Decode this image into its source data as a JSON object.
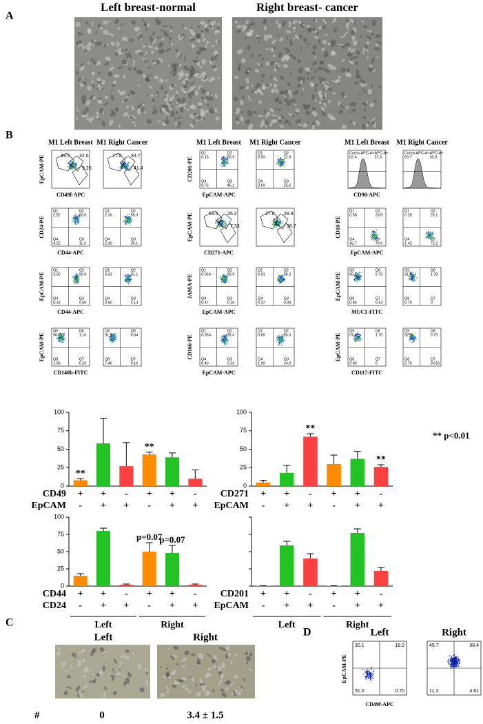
{
  "panel_a": {
    "label": "A",
    "images": [
      "Left breast-normal",
      "Right breast- cancer"
    ]
  },
  "panel_b": {
    "label": "B",
    "groups": [
      {
        "headers": [
          "M1 Left Breast",
          "M1 Right Cancer"
        ],
        "plots": [
          {
            "kind": "gate",
            "y_label": "EpCAM-PE",
            "x_label": "CD49f-APC",
            "left": [
              "49.5",
              "32.6",
              "9.20"
            ],
            "right": [
              "17.0",
              "33.7",
              "41.4"
            ]
          },
          {
            "kind": "quad",
            "y_label": "CD24-PE",
            "x_label": "CD44-APC",
            "quadrants": [
              "Q1",
              "Q2",
              "Q4",
              "Q3"
            ],
            "left": [
              "2.52",
              "83.0",
              "3.22",
              "11.3"
            ],
            "right": [
              "2.26",
              "56.3",
              "2.30",
              "39.1"
            ]
          },
          {
            "kind": "quad",
            "y_label": "EpCAM-PE",
            "x_label": "CD44-APC",
            "quadrants": [
              "Q1",
              "Q2",
              "Q4",
              "Q3"
            ],
            "left": [
              "3.26",
              "90.9",
              "5.32",
              "0.50"
            ],
            "right": [
              "3.23",
              "91.1",
              "0.50",
              "5.14"
            ]
          },
          {
            "kind": "quad",
            "y_label": "EpCAM-PE",
            "x_label": "CD140b-FITC",
            "quadrants": [
              "Q5",
              "Q6",
              "Q8",
              "Q7"
            ],
            "left": [
              "96.7",
              "1.10",
              "1.96",
              "0.23"
            ],
            "right": [
              "91.5",
              "0.84",
              "7.46",
              "0.16"
            ]
          }
        ]
      },
      {
        "headers": [
          "M1 Left Breast",
          "M1 Right Cancer"
        ],
        "plots": [
          {
            "kind": "quad",
            "y_label": "CD201-PE",
            "x_label": "EpCAM-APC",
            "quadrants": [
              "Q1",
              "Q2",
              "Q4",
              "Q3"
            ],
            "left": [
              "0.16",
              "53.9",
              "0.76",
              "45.1"
            ],
            "right": [
              "0.93",
              "72.9",
              "0.59",
              "25.6"
            ]
          },
          {
            "kind": "gate",
            "y_label": "EpCAM-PE",
            "x_label": "CD271-APC",
            "left": [
              "63.5",
              "25.2",
              "7.33"
            ],
            "right": [
              "27.0",
              "28.8",
              "38.7"
            ]
          },
          {
            "kind": "quad",
            "y_label": "JAMA-PE",
            "x_label": "EpCAM-APC",
            "quadrants": [
              "Q1",
              "Q2",
              "Q4",
              "Q3"
            ],
            "left": [
              "0.053",
              "99.3",
              "0.47",
              "0.16"
            ],
            "right": [
              "0.91",
              "98.3",
              "0.37",
              "0.39"
            ]
          },
          {
            "kind": "quad",
            "y_label": "CD166-PE",
            "x_label": "EpCAM-APC",
            "quadrants": [
              "Q1",
              "Q2",
              "Q4",
              "Q3"
            ],
            "left": [
              "0.053",
              "99.3",
              "0.40",
              "0.23"
            ],
            "right": [
              "0.65",
              "85.3",
              "1.99",
              "14.0"
            ]
          }
        ]
      },
      {
        "headers": [
          "M1 Left Breast",
          "M1 Right Cancer"
        ],
        "plots": [
          {
            "kind": "hist",
            "y_label": "",
            "x_label": "CD90-APC",
            "gate_label": "Comp-APC-A+APC-A+",
            "left": [
              "62.4",
              "37.6"
            ],
            "right": [
              "69.7",
              "30.3"
            ]
          },
          {
            "kind": "quad",
            "y_label": "CD10-PE",
            "x_label": "EpCAM-APC",
            "quadrants": [
              "Q1",
              "Q2",
              "Q4",
              "Q3"
            ],
            "left": [
              "0.58",
              "3.09",
              "16.7",
              "79.6"
            ],
            "right": [
              "0.28",
              "26.1",
              "1.42",
              "72.2"
            ]
          },
          {
            "kind": "quad",
            "y_label": "EpCAM-PE",
            "x_label": "MUC1-FITC",
            "quadrants": [
              "Q5",
              "Q6",
              "Q8",
              "Q7"
            ],
            "left": [
              "89.2",
              "9.79",
              "0.86",
              "0.13"
            ],
            "right": [
              "91.4",
              "1.78",
              "6.79",
              "0"
            ]
          },
          {
            "kind": "quad",
            "y_label": "EpCAM-PE",
            "x_label": "CD117-FITC",
            "quadrants": [
              "Q5",
              "Q6",
              "Q8",
              "Q7"
            ],
            "left": [
              "97.4",
              "1.76",
              "0.89",
              "0"
            ],
            "right": [
              "92.9",
              "0.75",
              "6.79",
              "0.616"
            ]
          }
        ]
      }
    ],
    "note": "** p<0.01"
  },
  "chart_data": [
    {
      "type": "bar",
      "ylim": [
        0,
        100
      ],
      "yticks": [
        0,
        25,
        50,
        75,
        100
      ],
      "values": [
        8,
        58,
        27,
        43,
        39,
        10
      ],
      "errors": [
        2,
        34,
        32,
        3,
        6,
        12
      ],
      "colors": [
        "#ff8c00",
        "#22c322",
        "#ff4040",
        "#ff8c00",
        "#22c322",
        "#ff4040"
      ],
      "annotations": [
        "**",
        null,
        null,
        "**",
        null,
        null
      ],
      "sign_rows": [
        {
          "name": "CD49",
          "signs": [
            "+",
            "+",
            "-",
            "+",
            "+",
            "-"
          ]
        },
        {
          "name": "EpCAM",
          "signs": [
            "-",
            "+",
            "+",
            "-",
            "+",
            "+"
          ]
        }
      ]
    },
    {
      "type": "bar",
      "ylim": [
        0,
        100
      ],
      "yticks": [
        0,
        25,
        50,
        75,
        100
      ],
      "values": [
        5,
        18,
        67,
        30,
        37,
        26
      ],
      "errors": [
        3,
        10,
        4,
        12,
        10,
        3
      ],
      "colors": [
        "#ff8c00",
        "#22c322",
        "#ff4040",
        "#ff8c00",
        "#22c322",
        "#ff4040"
      ],
      "annotations": [
        null,
        null,
        "**",
        null,
        null,
        "**"
      ],
      "sign_rows": [
        {
          "name": "CD271",
          "signs": [
            "+",
            "+",
            "-",
            "+",
            "+",
            "-"
          ]
        },
        {
          "name": "EpCAM",
          "signs": [
            "-",
            "+",
            "+",
            "-",
            "+",
            "+"
          ]
        }
      ]
    },
    {
      "type": "bar",
      "ylim": [
        0,
        100
      ],
      "yticks": [
        0,
        25,
        50,
        75,
        100
      ],
      "values": [
        15,
        80,
        2,
        50,
        48,
        2
      ],
      "errors": [
        3,
        4,
        1,
        13,
        11,
        1
      ],
      "colors": [
        "#ff8c00",
        "#22c322",
        "#ff4040",
        "#ff8c00",
        "#22c322",
        "#ff4040"
      ],
      "annotations": [
        null,
        null,
        null,
        "p=0.07",
        "p=0.07",
        null
      ],
      "sign_rows": [
        {
          "name": "CD44",
          "signs": [
            "+",
            "+",
            "-",
            "+",
            "+",
            "-"
          ]
        },
        {
          "name": "CD24",
          "signs": [
            "-",
            "+",
            "+",
            "-",
            "+",
            "+"
          ]
        }
      ],
      "group_labels": [
        "Left",
        "Right"
      ]
    },
    {
      "type": "bar",
      "ylim": [
        0,
        100
      ],
      "yticks": [
        0,
        25,
        50,
        75,
        100
      ],
      "ytick_labels": false,
      "values": [
        0.5,
        59,
        40,
        0.5,
        77,
        22
      ],
      "errors": [
        0,
        6,
        7,
        0,
        6,
        5
      ],
      "colors": [
        "#ff8c00",
        "#22c322",
        "#ff4040",
        "#ff8c00",
        "#22c322",
        "#ff4040"
      ],
      "annotations": [
        null,
        null,
        null,
        null,
        null,
        null
      ],
      "sign_rows": [
        {
          "name": "CD201",
          "signs": [
            "+",
            "+",
            "-",
            "+",
            "+",
            "-"
          ]
        },
        {
          "name": "EpCAM",
          "signs": [
            "-",
            "+",
            "+",
            "-",
            "+",
            "+"
          ]
        }
      ],
      "group_labels": [
        "Left",
        "Right"
      ]
    }
  ],
  "panel_c": {
    "label": "C",
    "titles": [
      "Left",
      "Right"
    ],
    "count_symbol": "#",
    "counts": [
      "0",
      "3.4 ± 1.5"
    ]
  },
  "panel_d": {
    "label": "D",
    "titles": [
      "Left",
      "Right"
    ],
    "y_label": "EpCAM-PE",
    "x_label": "CD49f-APC",
    "left": [
      "30.1",
      "18.2",
      "51.0",
      "0.70"
    ],
    "right": [
      "45.7",
      "38.4",
      "11.3",
      "4.61"
    ]
  }
}
